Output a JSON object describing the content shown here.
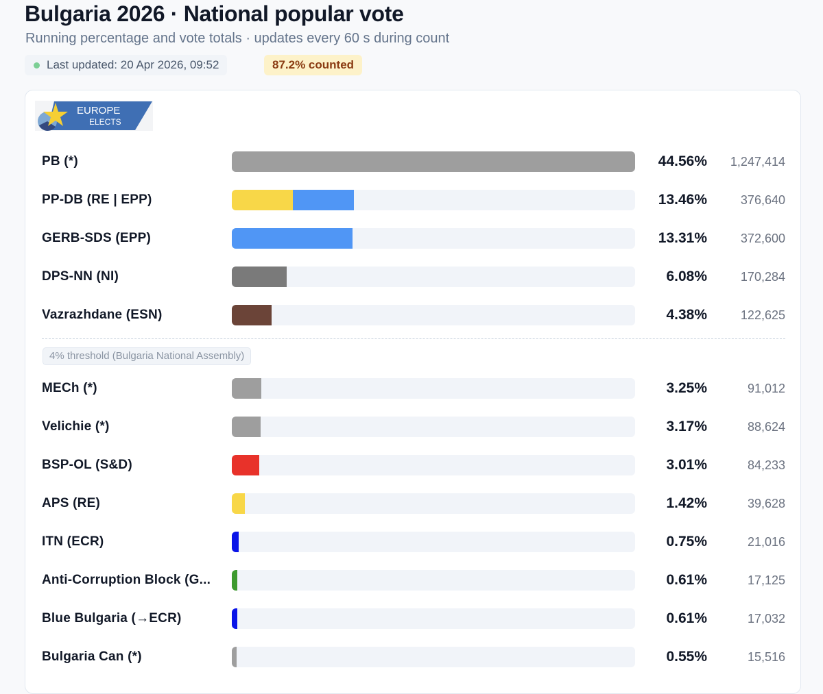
{
  "header": {
    "title": "Bulgaria 2026 · National popular vote",
    "subtitle": "Running percentage and vote totals · updates every 60 s during count",
    "last_updated": "Last updated: 20 Apr 2026, 09:52",
    "counted": "87.2% counted",
    "status_color": "#7ccf95"
  },
  "logo": {
    "line1": "EUROPE",
    "line2": "ELECTS"
  },
  "threshold_label": "4% threshold (Bulgaria National Assembly)",
  "chart_data": {
    "type": "bar",
    "orientation": "horizontal",
    "threshold": 4,
    "xlim": [
      0,
      44.56
    ],
    "rows": [
      {
        "name": "PB (*)",
        "pct": "44.56%",
        "value": 44.56,
        "votes": "1,247,414",
        "colors": [
          "#9e9e9e"
        ]
      },
      {
        "name": "PP-DB (RE | EPP)",
        "pct": "13.46%",
        "value": 13.46,
        "votes": "376,640",
        "colors": [
          "#f8d748",
          "#5096f5"
        ]
      },
      {
        "name": "GERB-SDS (EPP)",
        "pct": "13.31%",
        "value": 13.31,
        "votes": "372,600",
        "colors": [
          "#5096f5"
        ]
      },
      {
        "name": "DPS-NN (NI)",
        "pct": "6.08%",
        "value": 6.08,
        "votes": "170,284",
        "colors": [
          "#7a7a7a"
        ]
      },
      {
        "name": "Vazrazhdane (ESN)",
        "pct": "4.38%",
        "value": 4.38,
        "votes": "122,625",
        "colors": [
          "#6b4438"
        ]
      },
      {
        "name": "MECh (*)",
        "pct": "3.25%",
        "value": 3.25,
        "votes": "91,012",
        "colors": [
          "#9e9e9e"
        ]
      },
      {
        "name": "Velichie (*)",
        "pct": "3.17%",
        "value": 3.17,
        "votes": "88,624",
        "colors": [
          "#9e9e9e"
        ]
      },
      {
        "name": "BSP-OL (S&D)",
        "pct": "3.01%",
        "value": 3.01,
        "votes": "84,233",
        "colors": [
          "#e8322a"
        ]
      },
      {
        "name": "APS (RE)",
        "pct": "1.42%",
        "value": 1.42,
        "votes": "39,628",
        "colors": [
          "#f8d748"
        ]
      },
      {
        "name": "ITN (ECR)",
        "pct": "0.75%",
        "value": 0.75,
        "votes": "21,016",
        "colors": [
          "#0a14e8"
        ]
      },
      {
        "name": "Anti-Corruption Block (G...",
        "pct": "0.61%",
        "value": 0.61,
        "votes": "17,125",
        "colors": [
          "#3d9a2e"
        ]
      },
      {
        "name": "Blue Bulgaria (→ECR)",
        "pct": "0.61%",
        "value": 0.61,
        "votes": "17,032",
        "colors": [
          "#0a14e8"
        ]
      },
      {
        "name": "Bulgaria Can (*)",
        "pct": "0.55%",
        "value": 0.55,
        "votes": "15,516",
        "colors": [
          "#9e9e9e"
        ]
      }
    ]
  }
}
